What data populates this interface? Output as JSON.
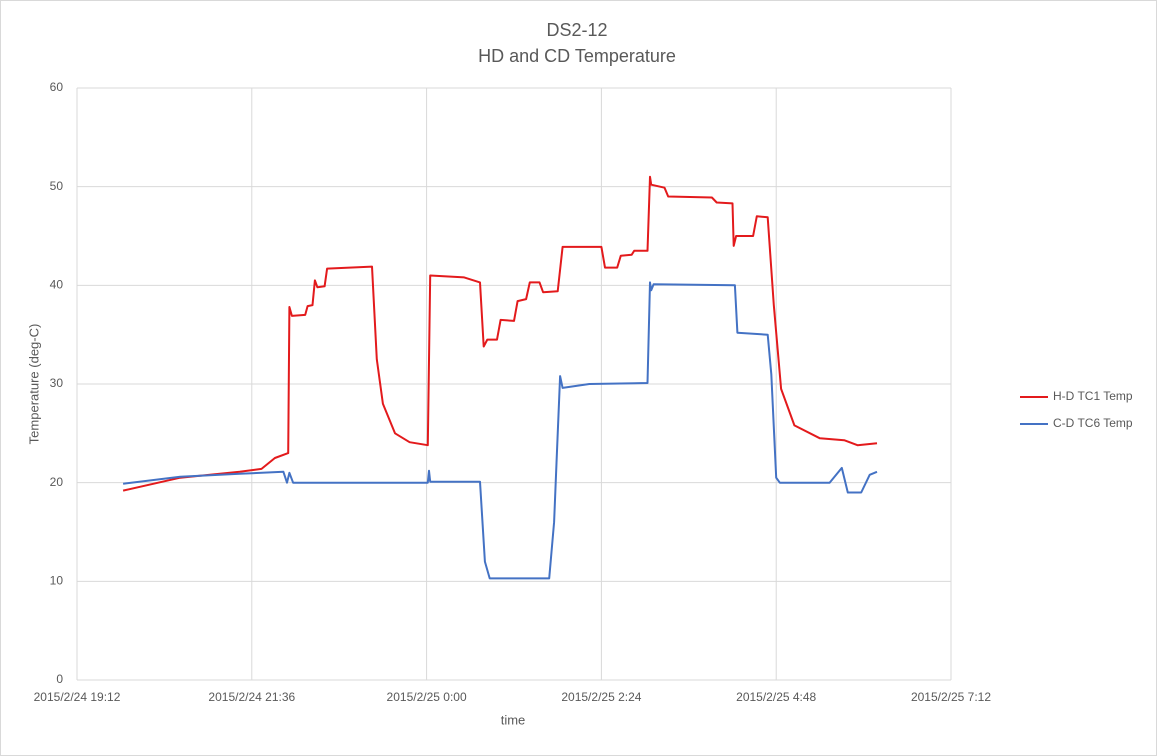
{
  "chart_data": {
    "type": "line",
    "title": "DS2-12",
    "subtitle": "HD and CD Temperature",
    "x_label": "time",
    "y_label": "Temperature (deg-C)",
    "xlim": [
      "2015/2/24 19:12",
      "2015/2/25 7:12"
    ],
    "xticks": [
      "2015/2/24 19:12",
      "2015/2/24 21:36",
      "2015/2/25 0:00",
      "2015/2/25 2:24",
      "2015/2/25 4:48",
      "2015/2/25 7:12"
    ],
    "ylim": [
      0,
      60
    ],
    "yticks": [
      0,
      10,
      20,
      30,
      40,
      50,
      60
    ],
    "grid": true,
    "legend": "right",
    "series": [
      {
        "name": "H-D TC1 Temp",
        "color": "#e31a1c",
        "x": [
          "2015/2/24 19:50",
          "2015/2/24 20:37",
          "2015/2/24 21:26",
          "2015/2/24 21:44",
          "2015/2/24 21:55",
          "2015/2/24 22:06",
          "2015/2/24 22:07",
          "2015/2/24 22:09",
          "2015/2/24 22:20",
          "2015/2/24 22:22",
          "2015/2/24 22:26",
          "2015/2/24 22:28",
          "2015/2/24 22:30",
          "2015/2/24 22:36",
          "2015/2/24 22:38",
          "2015/2/24 23:15",
          "2015/2/24 23:19",
          "2015/2/24 23:24",
          "2015/2/24 23:34",
          "2015/2/24 23:46",
          "2015/2/25 0:01",
          "2015/2/25 0:03",
          "2015/2/25 0:31",
          "2015/2/25 0:44",
          "2015/2/25 0:47",
          "2015/2/25 0:50",
          "2015/2/25 0:58",
          "2015/2/25 1:01",
          "2015/2/25 1:12",
          "2015/2/25 1:15",
          "2015/2/25 1:22",
          "2015/2/25 1:25",
          "2015/2/25 1:33",
          "2015/2/25 1:36",
          "2015/2/25 1:48",
          "2015/2/25 1:52",
          "2015/2/25 2:24",
          "2015/2/25 2:27",
          "2015/2/25 2:37",
          "2015/2/25 2:40",
          "2015/2/25 2:49",
          "2015/2/25 2:51",
          "2015/2/25 3:02",
          "2015/2/25 3:04",
          "2015/2/25 3:05",
          "2015/2/25 3:16",
          "2015/2/25 3:19",
          "2015/2/25 3:55",
          "2015/2/25 3:59",
          "2015/2/25 4:12",
          "2015/2/25 4:13",
          "2015/2/25 4:15",
          "2015/2/25 4:29",
          "2015/2/25 4:32",
          "2015/2/25 4:41",
          "2015/2/25 4:46",
          "2015/2/25 4:52",
          "2015/2/25 5:03",
          "2015/2/25 5:24",
          "2015/2/25 5:44",
          "2015/2/25 5:55",
          "2015/2/25 6:11"
        ],
        "values": [
          19.2,
          20.5,
          21.1,
          21.4,
          22.5,
          23.0,
          37.8,
          36.9,
          37.0,
          37.9,
          38.0,
          40.5,
          39.8,
          39.9,
          41.7,
          41.9,
          32.5,
          28.0,
          25.0,
          24.1,
          23.8,
          41.0,
          40.8,
          40.3,
          33.8,
          34.5,
          34.5,
          36.5,
          36.4,
          38.4,
          38.6,
          40.3,
          40.3,
          39.3,
          39.4,
          43.9,
          43.9,
          41.8,
          41.8,
          43.0,
          43.1,
          43.5,
          43.5,
          51.0,
          50.2,
          49.9,
          49.0,
          48.9,
          48.4,
          48.3,
          44.0,
          45.0,
          45.0,
          47.0,
          46.9,
          38.0,
          29.5,
          25.8,
          24.5,
          24.3,
          23.8,
          24.0
        ]
      },
      {
        "name": "C-D TC6 Temp",
        "color": "#4472c4",
        "x": [
          "2015/2/24 19:50",
          "2015/2/24 20:37",
          "2015/2/24 21:26",
          "2015/2/24 22:02",
          "2015/2/24 22:05",
          "2015/2/24 22:07",
          "2015/2/24 22:10",
          "2015/2/25 0:01",
          "2015/2/25 0:02",
          "2015/2/25 0:03",
          "2015/2/25 0:44",
          "2015/2/25 0:48",
          "2015/2/25 0:52",
          "2015/2/25 1:41",
          "2015/2/25 1:45",
          "2015/2/25 1:47",
          "2015/2/25 1:50",
          "2015/2/25 1:52",
          "2015/2/25 2:14",
          "2015/2/25 3:02",
          "2015/2/25 3:04",
          "2015/2/25 3:05",
          "2015/2/25 3:07",
          "2015/2/25 4:14",
          "2015/2/25 4:16",
          "2015/2/25 4:41",
          "2015/2/25 4:44",
          "2015/2/25 4:48",
          "2015/2/25 4:51",
          "2015/2/25 5:32",
          "2015/2/25 5:42",
          "2015/2/25 5:47",
          "2015/2/25 5:58",
          "2015/2/25 6:05",
          "2015/2/25 6:11"
        ],
        "values": [
          19.9,
          20.6,
          20.9,
          21.1,
          20.0,
          21.0,
          20.0,
          20.0,
          21.2,
          20.1,
          20.1,
          12.0,
          10.3,
          10.3,
          16.0,
          22.0,
          30.8,
          29.6,
          30.0,
          30.1,
          40.3,
          39.5,
          40.1,
          40.0,
          35.2,
          35.0,
          31.0,
          20.5,
          20.0,
          20.0,
          21.5,
          19.0,
          19.0,
          20.8,
          21.1
        ]
      }
    ]
  }
}
